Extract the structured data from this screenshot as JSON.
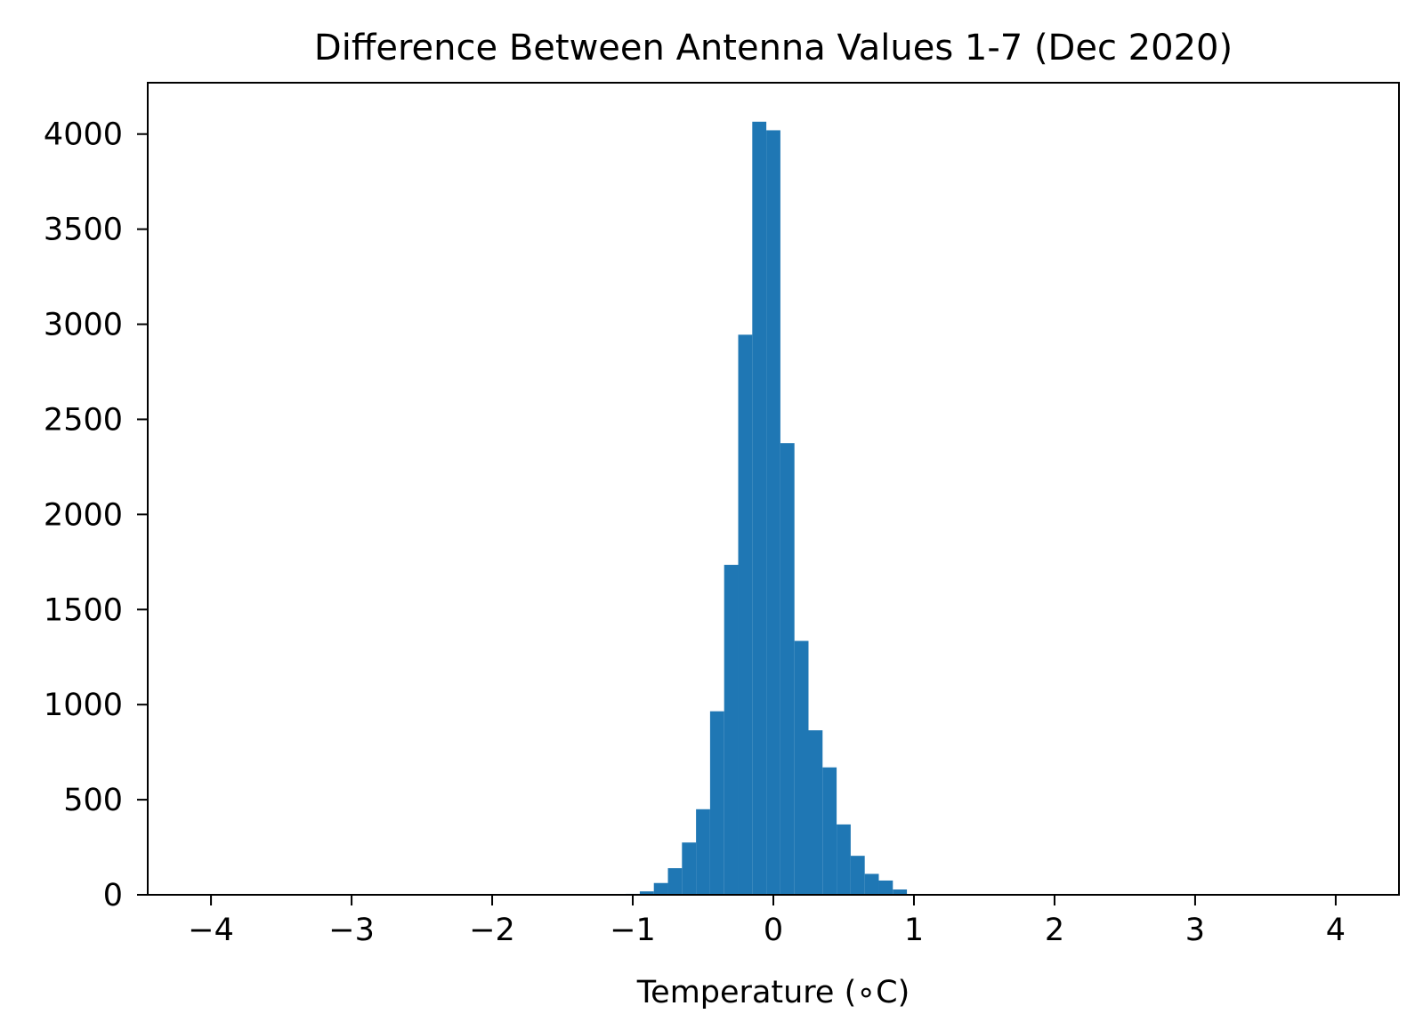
{
  "chart_data": {
    "type": "bar",
    "title": "Difference Between Antenna Values 1-7 (Dec 2020)",
    "xlabel": "Temperature (∘C)",
    "ylabel": "",
    "xlim": [
      -4.45,
      4.45
    ],
    "ylim": [
      0,
      4270
    ],
    "x_ticks": [
      -4,
      -3,
      -2,
      -1,
      0,
      1,
      2,
      3,
      4
    ],
    "x_tick_labels": [
      "−4",
      "−3",
      "−2",
      "−1",
      "0",
      "1",
      "2",
      "3",
      "4"
    ],
    "y_ticks": [
      0,
      500,
      1000,
      1500,
      2000,
      2500,
      3000,
      3500,
      4000
    ],
    "y_tick_labels": [
      "0",
      "500",
      "1000",
      "1500",
      "2000",
      "2500",
      "3000",
      "3500",
      "4000"
    ],
    "bar_color": "#1f77b4",
    "grid": false,
    "bins": [
      {
        "x0": -1.05,
        "x1": -0.95,
        "value": 5
      },
      {
        "x0": -0.95,
        "x1": -0.85,
        "value": 18
      },
      {
        "x0": -0.85,
        "x1": -0.75,
        "value": 62
      },
      {
        "x0": -0.75,
        "x1": -0.65,
        "value": 140
      },
      {
        "x0": -0.65,
        "x1": -0.55,
        "value": 275
      },
      {
        "x0": -0.55,
        "x1": -0.45,
        "value": 450
      },
      {
        "x0": -0.45,
        "x1": -0.35,
        "value": 965
      },
      {
        "x0": -0.35,
        "x1": -0.25,
        "value": 1735
      },
      {
        "x0": -0.25,
        "x1": -0.15,
        "value": 2945
      },
      {
        "x0": -0.15,
        "x1": -0.05,
        "value": 4065
      },
      {
        "x0": -0.05,
        "x1": 0.05,
        "value": 4020
      },
      {
        "x0": 0.05,
        "x1": 0.15,
        "value": 2375
      },
      {
        "x0": 0.15,
        "x1": 0.25,
        "value": 1335
      },
      {
        "x0": 0.25,
        "x1": 0.35,
        "value": 865
      },
      {
        "x0": 0.35,
        "x1": 0.45,
        "value": 670
      },
      {
        "x0": 0.45,
        "x1": 0.55,
        "value": 370
      },
      {
        "x0": 0.55,
        "x1": 0.65,
        "value": 205
      },
      {
        "x0": 0.65,
        "x1": 0.75,
        "value": 110
      },
      {
        "x0": 0.75,
        "x1": 0.85,
        "value": 75
      },
      {
        "x0": 0.85,
        "x1": 0.95,
        "value": 28
      }
    ]
  }
}
